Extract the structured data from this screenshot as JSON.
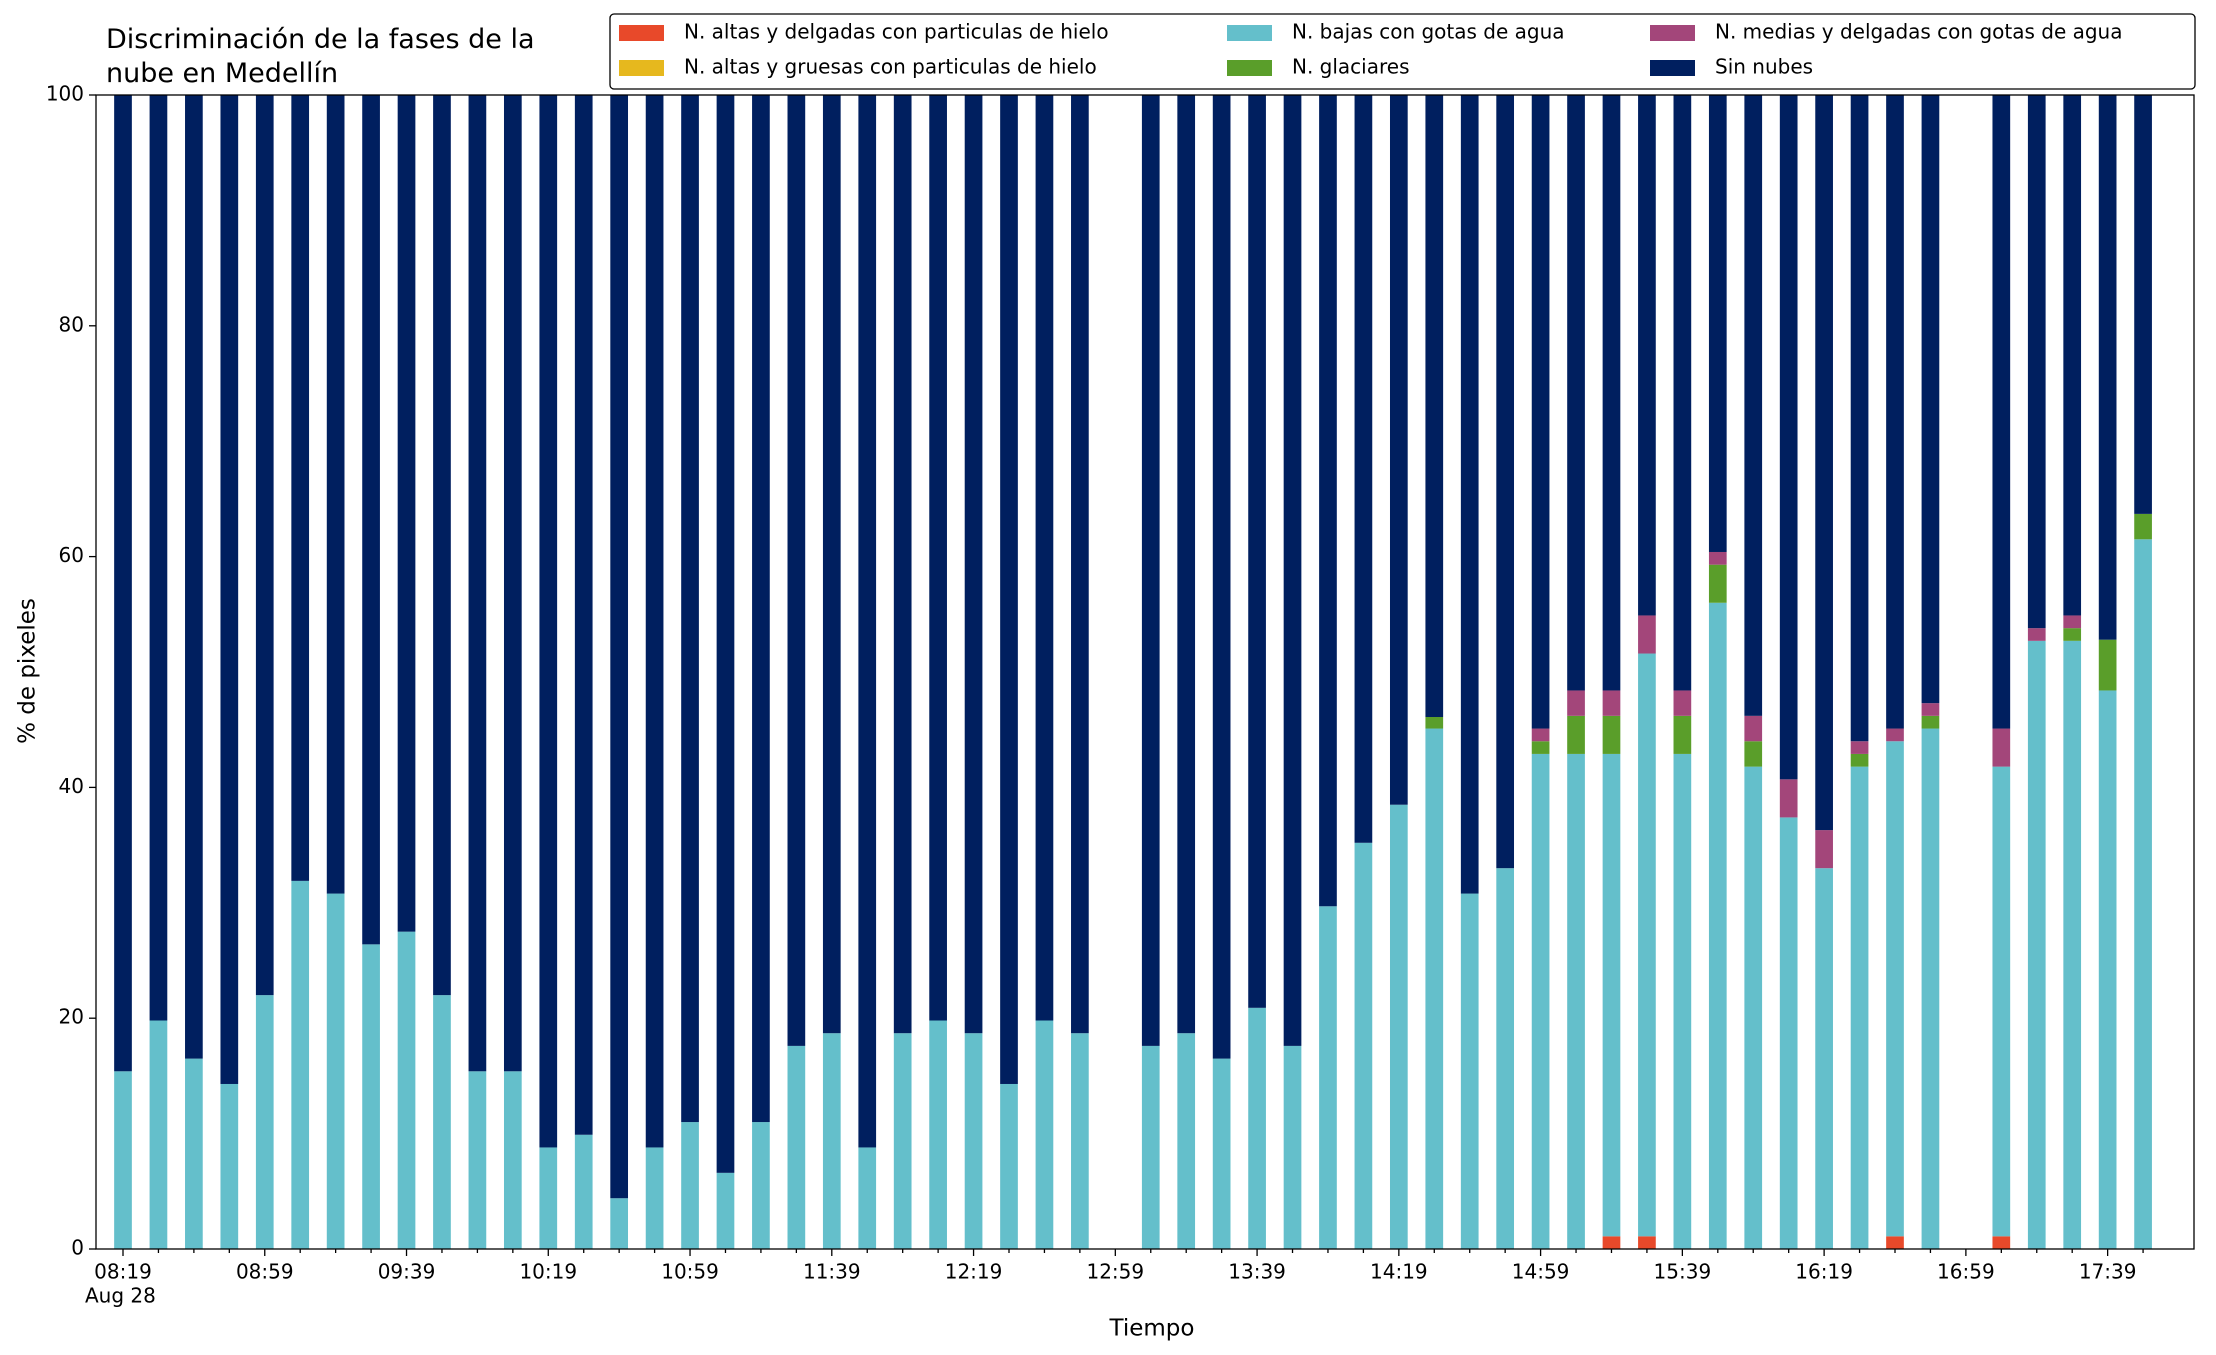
{
  "chart_data": {
    "type": "stacked_bar",
    "title": "Discriminación de la fases de la\nnube en Medellín",
    "xlabel": "Tiempo",
    "ylabel": "% de pixeles",
    "x_sublabel": "Aug 28",
    "categories": [
      "08:19",
      null,
      null,
      null,
      "08:59",
      null,
      null,
      null,
      "09:39",
      null,
      null,
      null,
      "10:19",
      null,
      null,
      null,
      "10:59",
      null,
      null,
      null,
      "11:39",
      null,
      null,
      null,
      "12:19",
      null,
      null,
      null,
      "12:59",
      null,
      null,
      null,
      "13:39",
      null,
      null,
      null,
      "14:19",
      null,
      null,
      null,
      "14:59",
      null,
      null,
      null,
      "15:39",
      null,
      null,
      null,
      "16:19",
      null,
      null,
      null,
      "16:59",
      null,
      null,
      null,
      "17:39",
      null
    ],
    "series": [
      {
        "name": "N. altas y delgadas con particulas de hielo",
        "color": "#e8492a",
        "values": [
          0,
          0,
          0,
          0,
          0,
          0,
          0,
          0,
          0,
          0,
          0,
          0,
          0,
          0,
          0,
          0,
          0,
          0,
          0,
          0,
          0,
          0,
          0,
          0,
          0,
          0,
          0,
          0,
          null,
          0,
          0,
          0,
          0,
          0,
          0,
          0,
          0,
          0,
          0,
          0,
          0,
          0,
          1.1,
          1.1,
          0,
          0,
          0,
          0,
          0,
          0,
          1.1,
          0,
          null,
          1.1,
          0,
          0,
          0,
          0
        ]
      },
      {
        "name": "N. altas y gruesas con particulas de hielo",
        "color": "#e6b81e",
        "values": [
          0,
          0,
          0,
          0,
          0,
          0,
          0,
          0,
          0,
          0,
          0,
          0,
          0,
          0,
          0,
          0,
          0,
          0,
          0,
          0,
          0,
          0,
          0,
          0,
          0,
          0,
          0,
          0,
          null,
          0,
          0,
          0,
          0,
          0,
          0,
          0,
          0,
          0,
          0,
          0,
          0,
          0,
          0,
          0,
          0,
          0,
          0,
          0,
          0,
          0,
          0,
          0,
          null,
          0,
          0,
          0,
          0,
          0
        ]
      },
      {
        "name": "N. bajas con gotas de agua",
        "color": "#64bfcb",
        "values": [
          15.4,
          19.8,
          16.5,
          14.3,
          22.0,
          31.9,
          30.8,
          26.4,
          27.5,
          22.0,
          15.4,
          15.4,
          8.8,
          9.9,
          4.4,
          8.8,
          11.0,
          6.6,
          11.0,
          17.6,
          18.7,
          8.8,
          18.7,
          19.8,
          18.7,
          14.3,
          19.8,
          18.7,
          null,
          17.6,
          18.7,
          16.5,
          20.9,
          17.6,
          29.7,
          35.2,
          38.5,
          45.1,
          30.8,
          33.0,
          42.9,
          42.9,
          41.8,
          50.5,
          42.9,
          56.0,
          41.8,
          37.4,
          33.0,
          41.8,
          42.9,
          45.1,
          null,
          40.7,
          52.7,
          52.7,
          48.4,
          61.5
        ]
      },
      {
        "name": "N. glaciares",
        "color": "#5a9e2a",
        "values": [
          0,
          0,
          0,
          0,
          0,
          0,
          0,
          0,
          0,
          0,
          0,
          0,
          0,
          0,
          0,
          0,
          0,
          0,
          0,
          0,
          0,
          0,
          0,
          0,
          0,
          0,
          0,
          0,
          null,
          0,
          0,
          0,
          0,
          0,
          0,
          0,
          0,
          1.0,
          0,
          0,
          1.1,
          3.3,
          3.3,
          0,
          3.3,
          3.3,
          2.2,
          0,
          0,
          1.1,
          0,
          1.1,
          null,
          0,
          0,
          1.1,
          4.4,
          2.2
        ]
      },
      {
        "name": "N. medias y delgadas con gotas de agua",
        "color": "#a3467a",
        "values": [
          0,
          0,
          0,
          0,
          0,
          0,
          0,
          0,
          0,
          0,
          0,
          0,
          0,
          0,
          0,
          0,
          0,
          0,
          0,
          0,
          0,
          0,
          0,
          0,
          0,
          0,
          0,
          0,
          null,
          0,
          0,
          0,
          0,
          0,
          0,
          0,
          0,
          0,
          0,
          0,
          1.1,
          2.2,
          2.2,
          3.3,
          2.2,
          1.1,
          2.2,
          3.3,
          3.3,
          1.1,
          1.1,
          1.1,
          null,
          3.3,
          1.1,
          1.1,
          0,
          0
        ]
      },
      {
        "name": "Sin nubes",
        "color": "#001f5f",
        "values": [
          84.6,
          80.2,
          83.5,
          85.7,
          78.0,
          68.1,
          69.2,
          73.6,
          72.5,
          78.0,
          84.6,
          84.6,
          91.2,
          90.1,
          95.6,
          91.2,
          89.0,
          93.4,
          89.0,
          82.4,
          81.3,
          91.2,
          81.3,
          80.2,
          81.3,
          85.7,
          80.2,
          81.3,
          null,
          82.4,
          81.3,
          83.5,
          79.1,
          82.4,
          70.3,
          64.8,
          61.5,
          53.9,
          69.2,
          67.0,
          54.9,
          51.6,
          51.6,
          45.1,
          51.6,
          39.6,
          53.8,
          59.3,
          63.7,
          56.0,
          54.9,
          52.7,
          null,
          54.9,
          46.2,
          45.1,
          47.2,
          36.3
        ]
      }
    ],
    "ylim": [
      0,
      100
    ],
    "yticks": [
      0,
      20,
      40,
      60,
      80,
      100
    ],
    "grid": false
  }
}
